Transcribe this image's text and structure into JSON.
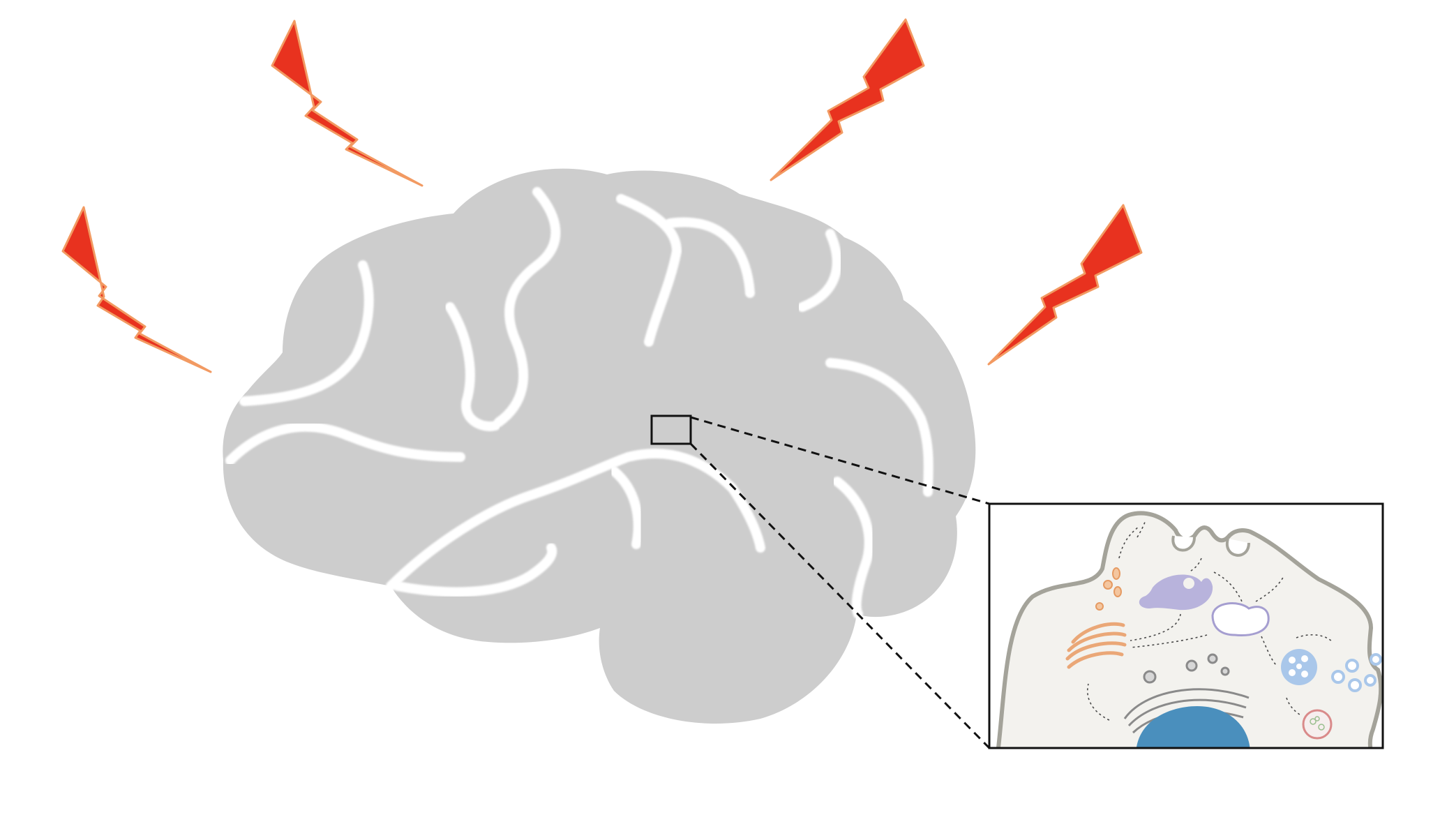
{
  "figure": {
    "subject": "brain-injury-to-cellular-detail",
    "elements": {
      "brain": "brain-silhouette",
      "lightning_bolts": [
        "lightning-bolt-upper-left",
        "lightning-bolt-left",
        "lightning-bolt-upper-right",
        "lightning-bolt-right"
      ],
      "zoom_region": "zoom-region-box",
      "inset": "cell-inset"
    },
    "cell_organelles": [
      "plasma-membrane",
      "endocytic-invaginations",
      "vesicles",
      "golgi-apparatus",
      "endosome",
      "recycling-endosome",
      "multivesicular-body",
      "exosomes",
      "lysosome",
      "rough-endoplasmic-reticulum",
      "nucleus",
      "trafficking-arrows"
    ]
  },
  "colors": {
    "background": "#ffffff",
    "brain": "#cdcdcd",
    "sulci": "#ffffff",
    "lightning_fill": "#e8321f",
    "lightning_stroke": "#f29a62",
    "inset_border": "#111111",
    "zoom_line": "#111111",
    "cell_fill": "#f3f2ee",
    "cell_membrane": "#a4a39a",
    "nucleus": "#4a8fbd",
    "golgi": "#eaa777",
    "endosome": "#b8b3dc",
    "recycling_endosome_stroke": "#a59ed0",
    "mvb": "#a9c7ea",
    "exosome": "#a9c7ea",
    "lysosome": "#d98a8a",
    "er": "#8a8a8a"
  }
}
